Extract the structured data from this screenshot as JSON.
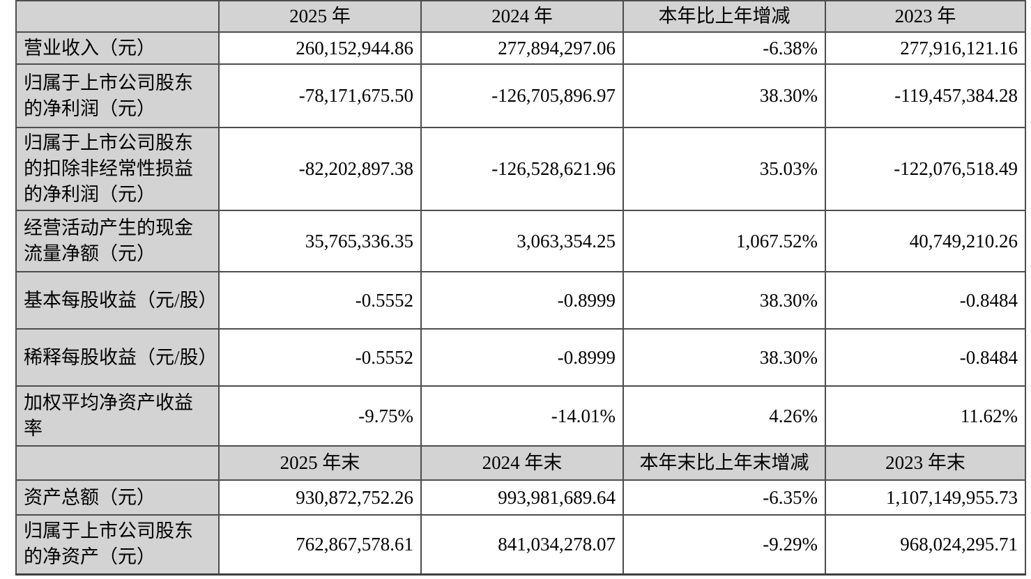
{
  "colors": {
    "header_fill": "#d3d3d3",
    "label_fill": "#d3d3d3",
    "border": "#4d4d4d",
    "text": "#000000",
    "background": "#ffffff"
  },
  "table": {
    "s1": {
      "corner": "",
      "headers": [
        "2025 年",
        "2024 年",
        "本年比上年增减",
        "2023 年"
      ],
      "rows": [
        {
          "label": "营业收入（元）",
          "v": [
            "260,152,944.86",
            "277,894,297.06",
            "-6.38%",
            "277,916,121.16"
          ]
        },
        {
          "label": "归属于上市公司股东的净利润（元）",
          "v": [
            "-78,171,675.50",
            "-126,705,896.97",
            "38.30%",
            "-119,457,384.28"
          ]
        },
        {
          "label": "归属于上市公司股东的扣除非经常性损益的净利润（元）",
          "v": [
            "-82,202,897.38",
            "-126,528,621.96",
            "35.03%",
            "-122,076,518.49"
          ]
        },
        {
          "label": "经营活动产生的现金流量净额（元）",
          "v": [
            "35,765,336.35",
            "3,063,354.25",
            "1,067.52%",
            "40,749,210.26"
          ]
        },
        {
          "label": "基本每股收益（元/股）",
          "v": [
            "-0.5552",
            "-0.8999",
            "38.30%",
            "-0.8484"
          ]
        },
        {
          "label": "稀释每股收益（元/股）",
          "v": [
            "-0.5552",
            "-0.8999",
            "38.30%",
            "-0.8484"
          ]
        },
        {
          "label": "加权平均净资产收益率",
          "v": [
            "-9.75%",
            "-14.01%",
            "4.26%",
            "11.62%"
          ]
        }
      ]
    },
    "s2": {
      "corner": "",
      "headers": [
        "2025 年末",
        "2024 年末",
        "本年末比上年末增减",
        "2023 年末"
      ],
      "rows": [
        {
          "label": "资产总额（元）",
          "v": [
            "930,872,752.26",
            "993,981,689.64",
            "-6.35%",
            "1,107,149,955.73"
          ]
        },
        {
          "label": "归属于上市公司股东的净资产（元）",
          "v": [
            "762,867,578.61",
            "841,034,278.07",
            "-9.29%",
            "968,024,295.71"
          ]
        }
      ]
    }
  }
}
